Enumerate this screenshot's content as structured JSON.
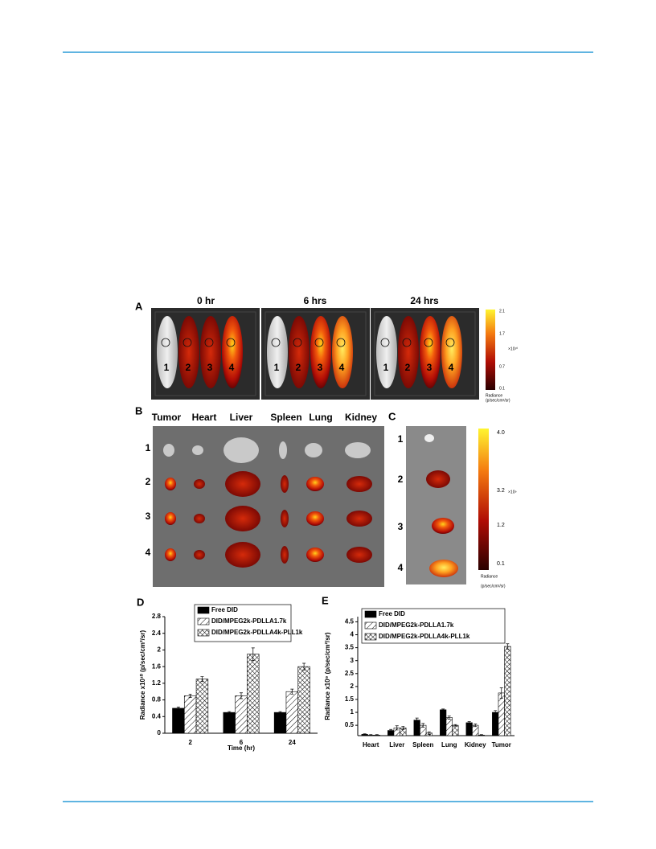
{
  "figure": {
    "panel_a": {
      "label": "A",
      "timepoints": [
        "0 hr",
        "6 hrs",
        "24 hrs"
      ],
      "mouse_labels": [
        "1",
        "2",
        "3",
        "4"
      ],
      "colorbar": {
        "ticks": [
          "2.1",
          "1.7",
          "0.7",
          "0.1"
        ],
        "unit": "×10¹⁰",
        "title": "Radiance",
        "subtitle": "(p/sec/cm²/sr)"
      }
    },
    "panel_b": {
      "label": "B",
      "organs": [
        "Tumor",
        "Heart",
        "Liver",
        "Spleen",
        "Lung",
        "Kidney"
      ],
      "rows": [
        "1",
        "2",
        "3",
        "4"
      ]
    },
    "panel_c": {
      "label": "C",
      "rows": [
        "1",
        "2",
        "3",
        "4"
      ],
      "colorbar": {
        "ticks": [
          "4.0",
          "3.2",
          "1.2",
          "0.1"
        ],
        "unit": "×10⁹",
        "title": "Radiance",
        "subtitle": "(p/sec/cm²/sr)"
      }
    }
  },
  "chart_data": [
    {
      "type": "bar",
      "label": "D",
      "y_label": "Radiance x10¹⁰ (p/sec/cm²/sr)",
      "x_label": "Time (hr)",
      "categories": [
        "2",
        "6",
        "24"
      ],
      "ylim": [
        0,
        2.8
      ],
      "yticks": [
        0.0,
        0.4,
        0.8,
        1.2,
        1.6,
        2.0,
        2.4,
        2.8
      ],
      "series": [
        {
          "name": "Free DID",
          "color": "#000000",
          "pattern": "solid",
          "values": [
            0.6,
            0.5,
            0.5
          ],
          "errors": [
            0.03,
            0.02,
            0.02
          ]
        },
        {
          "name": "DID/MPEG2k-PDLLA1.7k",
          "color": "#000000",
          "pattern": "hatch",
          "values": [
            0.9,
            0.9,
            1.0
          ],
          "errors": [
            0.04,
            0.07,
            0.06
          ]
        },
        {
          "name": "DID/MPEG2k-PDLLA4k-PLL1k",
          "color": "#000000",
          "pattern": "crosshatch",
          "values": [
            1.3,
            1.9,
            1.6
          ],
          "errors": [
            0.06,
            0.15,
            0.08
          ]
        }
      ]
    },
    {
      "type": "bar",
      "label": "E",
      "y_label": "Radiance x10⁹ (p/sec/cm²/sr)",
      "categories": [
        "Heart",
        "Liver",
        "Spleen",
        "Lung",
        "Kidney",
        "Tumor"
      ],
      "ylim": [
        0.1,
        4.7
      ],
      "yticks": [
        0.5,
        1.0,
        1.5,
        2.0,
        2.5,
        3.0,
        3.5,
        4.0,
        4.5
      ],
      "series": [
        {
          "name": "Free DID",
          "color": "#000000",
          "pattern": "solid",
          "values": [
            0.15,
            0.3,
            0.7,
            1.1,
            0.6,
            1.0
          ],
          "errors": [
            0.02,
            0.04,
            0.08,
            0.03,
            0.04,
            0.07
          ]
        },
        {
          "name": "DID/MPEG2k-PDLLA1.7k",
          "color": "#000000",
          "pattern": "hatch",
          "values": [
            0.12,
            0.4,
            0.5,
            0.8,
            0.5,
            1.75
          ],
          "errors": [
            0.02,
            0.08,
            0.07,
            0.06,
            0.05,
            0.2
          ]
        },
        {
          "name": "DID/MPEG2k-PDLLA4k-PLL1k",
          "color": "#000000",
          "pattern": "crosshatch",
          "values": [
            0.12,
            0.4,
            0.2,
            0.5,
            0.12,
            3.55
          ],
          "errors": [
            0.02,
            0.06,
            0.05,
            0.03,
            0.02,
            0.1
          ]
        }
      ]
    }
  ]
}
